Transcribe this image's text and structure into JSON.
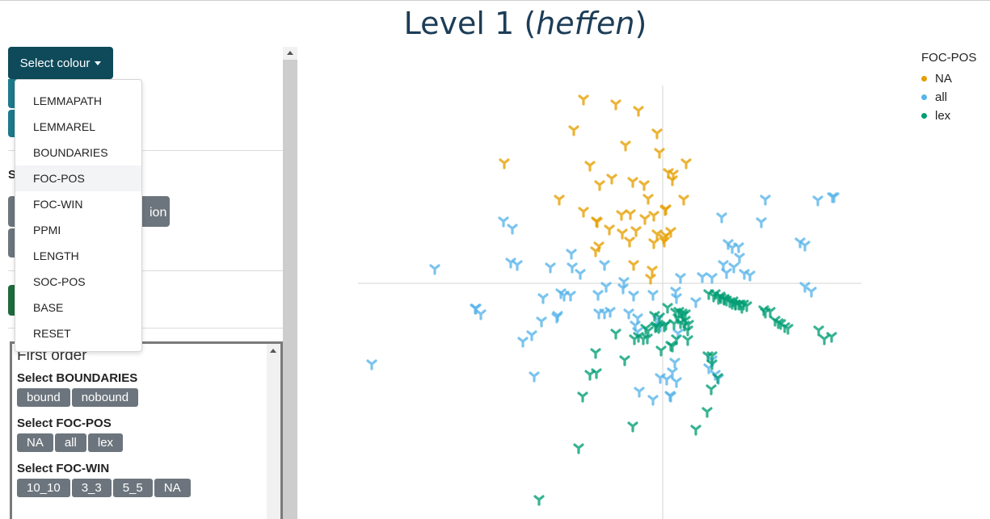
{
  "title": {
    "level": "Level 1 (",
    "lemma": "heffen",
    "close": ")"
  },
  "select_colour": {
    "label": "Select colour"
  },
  "dropdown": [
    "LEMMAPATH",
    "LEMMAREL",
    "BOUNDARIES",
    "FOC-POS",
    "FOC-WIN",
    "PPMI",
    "LENGTH",
    "SOC-POS",
    "BASE",
    "RESET"
  ],
  "first_order": {
    "title": "First order",
    "boundaries": {
      "label": "Select BOUNDARIES",
      "options": [
        "bound",
        "nobound"
      ]
    },
    "foc_pos": {
      "label": "Select FOC-POS",
      "options": [
        "NA",
        "all",
        "lex"
      ]
    },
    "foc_win": {
      "label": "Select FOC-WIN",
      "options": [
        "10_10",
        "3_3",
        "5_5",
        "NA"
      ]
    }
  },
  "peek": {
    "s_label": "S",
    "btn_text": "ion"
  },
  "legend": {
    "title": "FOC-POS",
    "items": [
      {
        "label": "NA",
        "color": "#E69F00"
      },
      {
        "label": "all",
        "color": "#56B4E9"
      },
      {
        "label": "lex",
        "color": "#009E73"
      }
    ]
  },
  "chart_data": {
    "type": "scatter",
    "marker": "tri-glyph",
    "grid": false,
    "axes_lines": true,
    "series": [
      {
        "name": "NA",
        "color": "#E69F00",
        "points": [
          [
            282,
            22
          ],
          [
            322,
            28
          ],
          [
            350,
            36
          ],
          [
            270,
            60
          ],
          [
            373,
            64
          ],
          [
            334,
            79
          ],
          [
            376,
            88
          ],
          [
            184,
            101
          ],
          [
            290,
            104
          ],
          [
            409,
            101
          ],
          [
            393,
            115
          ],
          [
            317,
            120
          ],
          [
            343,
            124
          ],
          [
            302,
            128
          ],
          [
            357,
            128
          ],
          [
            387,
            113
          ],
          [
            392,
            122
          ],
          [
            406,
            146
          ],
          [
            252,
            146
          ],
          [
            362,
            145
          ],
          [
            383,
            159
          ],
          [
            282,
            161
          ],
          [
            298,
            173
          ],
          [
            329,
            165
          ],
          [
            340,
            164
          ],
          [
            384,
            158
          ],
          [
            369,
            166
          ],
          [
            299,
            174
          ],
          [
            358,
            170
          ],
          [
            314,
            183
          ],
          [
            347,
            185
          ],
          [
            330,
            188
          ],
          [
            390,
            186
          ],
          [
            339,
            198
          ],
          [
            373,
            189
          ],
          [
            384,
            191
          ],
          [
            369,
            200
          ],
          [
            381,
            194
          ],
          [
            301,
            204
          ],
          [
            297,
            210
          ],
          [
            344,
            227
          ],
          [
            367,
            234
          ],
          [
            382,
            198
          ],
          [
            365,
            244
          ]
        ]
      },
      {
        "name": "all",
        "color": "#56B4E9",
        "points": [
          [
            98,
            232
          ],
          [
            194,
            182
          ],
          [
            200,
            227
          ],
          [
            241,
            230
          ],
          [
            268,
            230
          ],
          [
            267,
            213
          ],
          [
            308,
            227
          ],
          [
            331,
            256
          ],
          [
            278,
            238
          ],
          [
            310,
            254
          ],
          [
            332,
            248
          ],
          [
            344,
            265
          ],
          [
            368,
            264
          ],
          [
            396,
            260
          ],
          [
            397,
            268
          ],
          [
            421,
            273
          ],
          [
            149,
            281
          ],
          [
            155,
            288
          ],
          [
            232,
            268
          ],
          [
            254,
            262
          ],
          [
            258,
            265
          ],
          [
            266,
            265
          ],
          [
            300,
            264
          ],
          [
            301,
            287
          ],
          [
            308,
            287
          ],
          [
            315,
            285
          ],
          [
            338,
            287
          ],
          [
            349,
            293
          ],
          [
            349,
            310
          ],
          [
            346,
            302
          ],
          [
            374,
            295
          ],
          [
            441,
            243
          ],
          [
            429,
            242
          ],
          [
            402,
            243
          ],
          [
            453,
            168
          ],
          [
            502,
            174
          ],
          [
            507,
            146
          ],
          [
            572,
            147
          ],
          [
            590,
            143
          ],
          [
            461,
            201
          ],
          [
            466,
            206
          ],
          [
            474,
            205
          ],
          [
            475,
            218
          ],
          [
            488,
            240
          ],
          [
            481,
            238
          ],
          [
            455,
            227
          ],
          [
            468,
            230
          ],
          [
            459,
            237
          ],
          [
            556,
            254
          ],
          [
            564,
            260
          ],
          [
            556,
            203
          ],
          [
            550,
            199
          ],
          [
            592,
            143
          ],
          [
            249,
            292
          ],
          [
            250,
            290
          ],
          [
            230,
            297
          ],
          [
            207,
            322
          ],
          [
            218,
            314
          ],
          [
            221,
            365
          ],
          [
            377,
            303
          ],
          [
            399,
            312
          ],
          [
            385,
            369
          ],
          [
            397,
            372
          ],
          [
            392,
            360
          ],
          [
            377,
            367
          ],
          [
            395,
            348
          ],
          [
            441,
            345
          ],
          [
            437,
            355
          ],
          [
            449,
            368
          ],
          [
            445,
            363
          ],
          [
            351,
            384
          ],
          [
            368,
            394
          ],
          [
            389,
            389
          ],
          [
            390,
            390
          ],
          [
            20,
            350
          ],
          [
            148,
            281
          ],
          [
            192,
            224
          ],
          [
            183,
            173
          ]
        ]
      },
      {
        "name": "lex",
        "color": "#009E73",
        "points": [
          [
            437,
            263
          ],
          [
            443,
            266
          ],
          [
            449,
            269
          ],
          [
            456,
            270
          ],
          [
            459,
            271
          ],
          [
            463,
            273
          ],
          [
            467,
            272
          ],
          [
            470,
            276
          ],
          [
            476,
            276
          ],
          [
            478,
            280
          ],
          [
            484,
            278
          ],
          [
            445,
            263
          ],
          [
            451,
            266
          ],
          [
            452,
            268
          ],
          [
            456,
            269
          ],
          [
            466,
            275
          ],
          [
            470,
            276
          ],
          [
            474,
            276
          ],
          [
            480,
            276
          ],
          [
            505,
            283
          ],
          [
            507,
            286
          ],
          [
            513,
            285
          ],
          [
            519,
            296
          ],
          [
            523,
            299
          ],
          [
            526,
            300
          ],
          [
            535,
            306
          ],
          [
            531,
            304
          ],
          [
            400,
            285
          ],
          [
            404,
            287
          ],
          [
            408,
            288
          ],
          [
            402,
            299
          ],
          [
            407,
            302
          ],
          [
            399,
            293
          ],
          [
            408,
            296
          ],
          [
            394,
            300
          ],
          [
            411,
            308
          ],
          [
            397,
            319
          ],
          [
            411,
            320
          ],
          [
            392,
            328
          ],
          [
            390,
            327
          ],
          [
            378,
            333
          ],
          [
            359,
            306
          ],
          [
            350,
            316
          ],
          [
            345,
            319
          ],
          [
            361,
            318
          ],
          [
            356,
            319
          ],
          [
            362,
            309
          ],
          [
            322,
            312
          ],
          [
            297,
            336
          ],
          [
            333,
            345
          ],
          [
            298,
            361
          ],
          [
            290,
            363
          ],
          [
            281,
            390
          ],
          [
            371,
            304
          ],
          [
            375,
            305
          ],
          [
            382,
            303
          ],
          [
            384,
            301
          ],
          [
            376,
            292
          ],
          [
            370,
            290
          ],
          [
            372,
            303
          ],
          [
            441,
            340
          ],
          [
            436,
            340
          ],
          [
            441,
            350
          ],
          [
            448,
            367
          ],
          [
            440,
            381
          ],
          [
            435,
            409
          ],
          [
            421,
            431
          ],
          [
            343,
            427
          ],
          [
            276,
            454
          ],
          [
            227,
            518
          ],
          [
            573,
            308
          ],
          [
            580,
            319
          ],
          [
            589,
            316
          ],
          [
            412,
            301
          ],
          [
            386,
            280
          ],
          [
            405,
            290
          ],
          [
            396,
            286
          ]
        ]
      }
    ]
  }
}
